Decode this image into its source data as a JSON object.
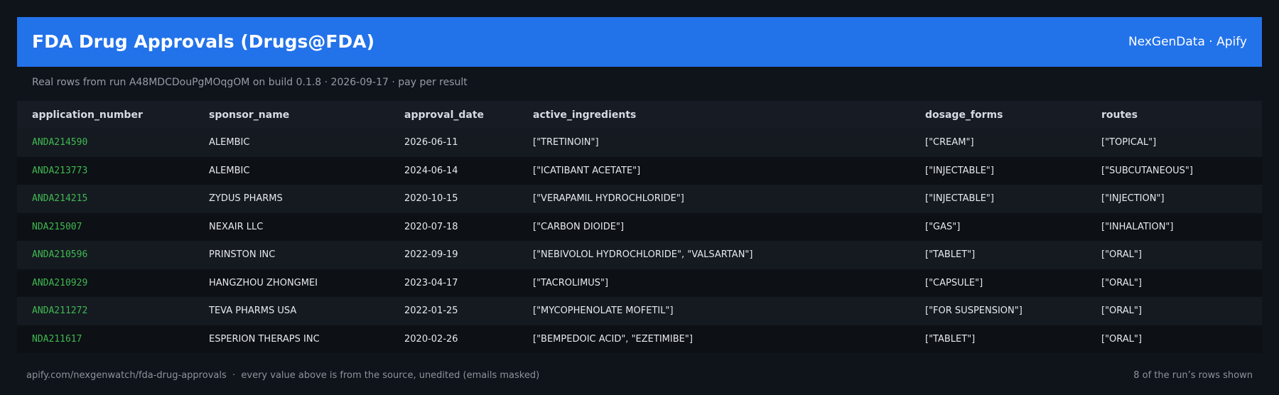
{
  "header": {
    "title": "FDA Drug Approvals (Drugs@FDA)",
    "brand": "NexGenData · Apify"
  },
  "subtitle": "Real rows from run A48MDCDouPgMOqgOM on build 0.1.8 · 2026-09-17 · pay per result",
  "table": {
    "columns": [
      "application_number",
      "sponsor_name",
      "approval_date",
      "active_ingredients",
      "dosage_forms",
      "routes"
    ],
    "rows": [
      [
        "ANDA214590",
        "ALEMBIC",
        "2026-06-11",
        "[\"TRETINOIN\"]",
        "[\"CREAM\"]",
        "[\"TOPICAL\"]"
      ],
      [
        "ANDA213773",
        "ALEMBIC",
        "2024-06-14",
        "[\"ICATIBANT ACETATE\"]",
        "[\"INJECTABLE\"]",
        "[\"SUBCUTANEOUS\"]"
      ],
      [
        "ANDA214215",
        "ZYDUS PHARMS",
        "2020-10-15",
        "[\"VERAPAMIL HYDROCHLORIDE\"]",
        "[\"INJECTABLE\"]",
        "[\"INJECTION\"]"
      ],
      [
        "NDA215007",
        "NEXAIR LLC",
        "2020-07-18",
        "[\"CARBON DIOIDE\"]",
        "[\"GAS\"]",
        "[\"INHALATION\"]"
      ],
      [
        "ANDA210596",
        "PRINSTON INC",
        "2022-09-19",
        "[\"NEBIVOLOL HYDROCHLORIDE\", \"VALSARTAN\"]",
        "[\"TABLET\"]",
        "[\"ORAL\"]"
      ],
      [
        "ANDA210929",
        "HANGZHOU ZHONGMEI",
        "2023-04-17",
        "[\"TACROLIMUS\"]",
        "[\"CAPSULE\"]",
        "[\"ORAL\"]"
      ],
      [
        "ANDA211272",
        "TEVA PHARMS USA",
        "2022-01-25",
        "[\"MYCOPHENOLATE MOFETIL\"]",
        "[\"FOR SUSPENSION\"]",
        "[\"ORAL\"]"
      ],
      [
        "NDA211617",
        "ESPERION THERAPS INC",
        "2020-02-26",
        "[\"BEMPEDOIC ACID\", \"EZETIMIBE\"]",
        "[\"TABLET\"]",
        "[\"ORAL\"]"
      ]
    ]
  },
  "footer": {
    "source": "apify.com/nexgenwatch/fda-drug-approvals  ·  every value above is from the source, unedited (emails masked)",
    "note": "8 of the run’s rows shown"
  }
}
